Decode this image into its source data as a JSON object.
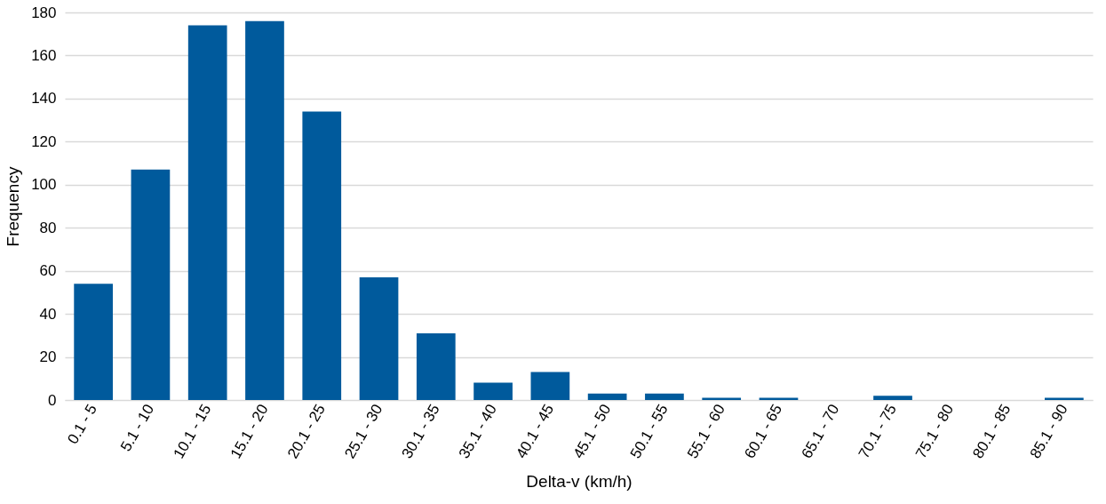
{
  "chart_data": {
    "type": "bar",
    "xlabel": "Delta-v (km/h)",
    "ylabel": "Frequency",
    "categories": [
      "0.1 - 5",
      "5.1 - 10",
      "10.1 - 15",
      "15.1 - 20",
      "20.1 - 25",
      "25.1 - 30",
      "30.1 - 35",
      "35.1 - 40",
      "40.1 - 45",
      "45.1 - 50",
      "50.1 - 55",
      "55.1 - 60",
      "60.1 - 65",
      "65.1 - 70",
      "70.1 - 75",
      "75.1 - 80",
      "80.1 - 85",
      "85.1 - 90"
    ],
    "values": [
      54,
      107,
      174,
      176,
      134,
      57,
      31,
      8,
      13,
      3,
      3,
      1,
      1,
      0,
      2,
      0,
      0,
      1
    ],
    "color": "#005a9c",
    "ylim": [
      0,
      180
    ],
    "yticks": [
      0,
      20,
      40,
      60,
      80,
      100,
      120,
      140,
      160,
      180
    ],
    "grid": "y"
  }
}
